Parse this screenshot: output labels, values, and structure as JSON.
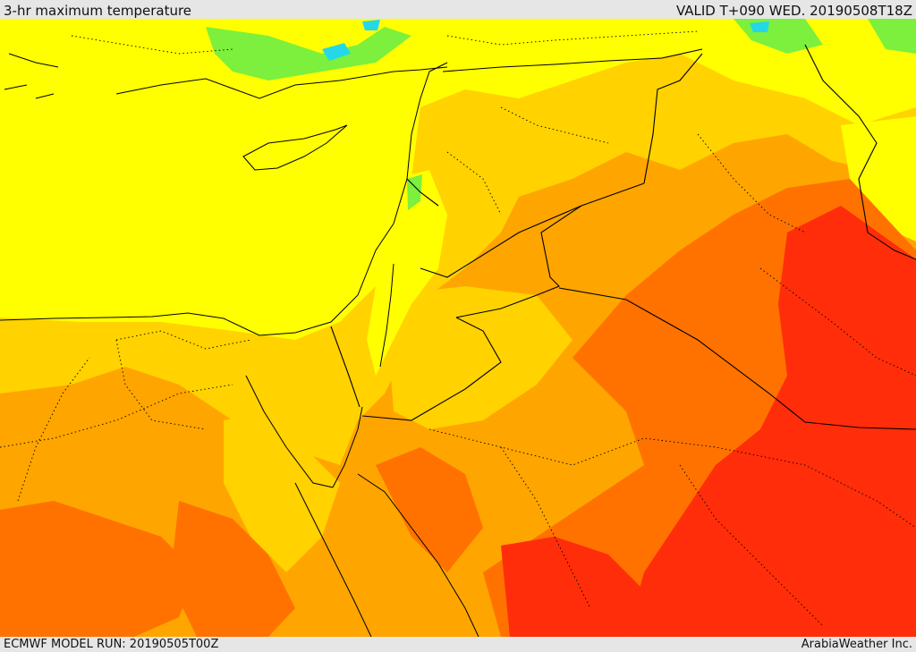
{
  "header": {
    "title": "3-hr maximum temperature",
    "valid": "VALID T+090 WED. 20190508T18Z"
  },
  "footer": {
    "model_run": "ECMWF MODEL RUN: 20190505T00Z",
    "credit": "ArabiaWeather Inc."
  },
  "colors": {
    "yellow": "#ffff00",
    "yellow_orange": "#ffd200",
    "orange": "#ffa500",
    "dark_orange": "#ff7200",
    "red": "#ff2d0a",
    "green": "#7cf03c",
    "cyan": "#24d8e8",
    "border": "#000000"
  }
}
